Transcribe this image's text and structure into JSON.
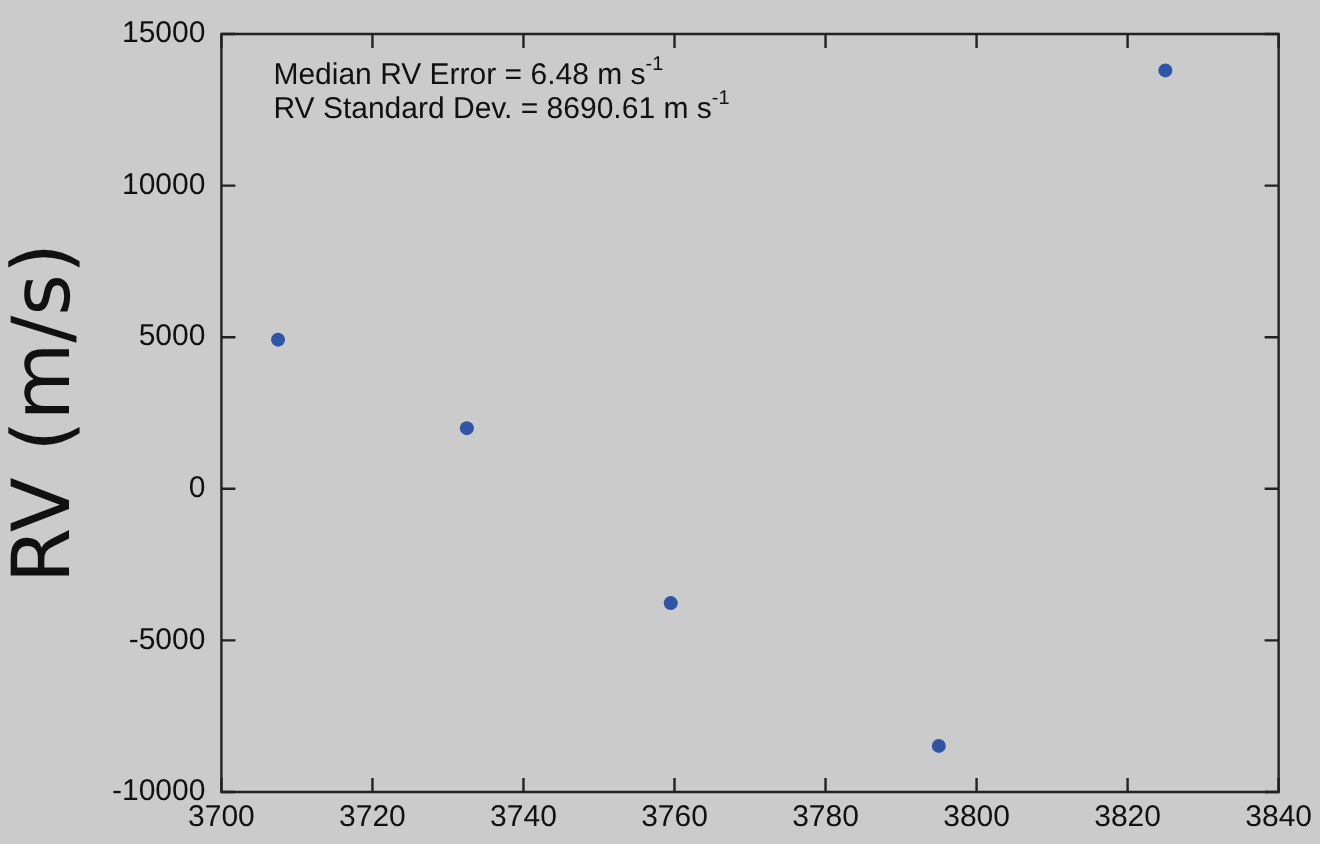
{
  "chart_data": {
    "type": "scatter",
    "ylabel": "RV (m/s)",
    "x": [
      3707.5,
      3732.5,
      3759.5,
      3795,
      3825
    ],
    "series": [
      {
        "color": "#2f55a4",
        "values": [
          4920,
          2000,
          -3770,
          -8480,
          13800
        ]
      }
    ],
    "xlim": [
      3700,
      3840
    ],
    "xticks": [
      3700,
      3720,
      3740,
      3760,
      3780,
      3800,
      3820,
      3840
    ],
    "ylim": [
      -10000,
      15000
    ],
    "yticks": [
      -10000,
      -5000,
      0,
      5000,
      10000,
      15000
    ],
    "annotations": [
      "Median RV Error = 6.48 m s$^{-1}$",
      "RV Standard Dev. = 8690.61 m s$^{-1}$"
    ],
    "grid": false,
    "legend": false,
    "marker": "circle"
  }
}
